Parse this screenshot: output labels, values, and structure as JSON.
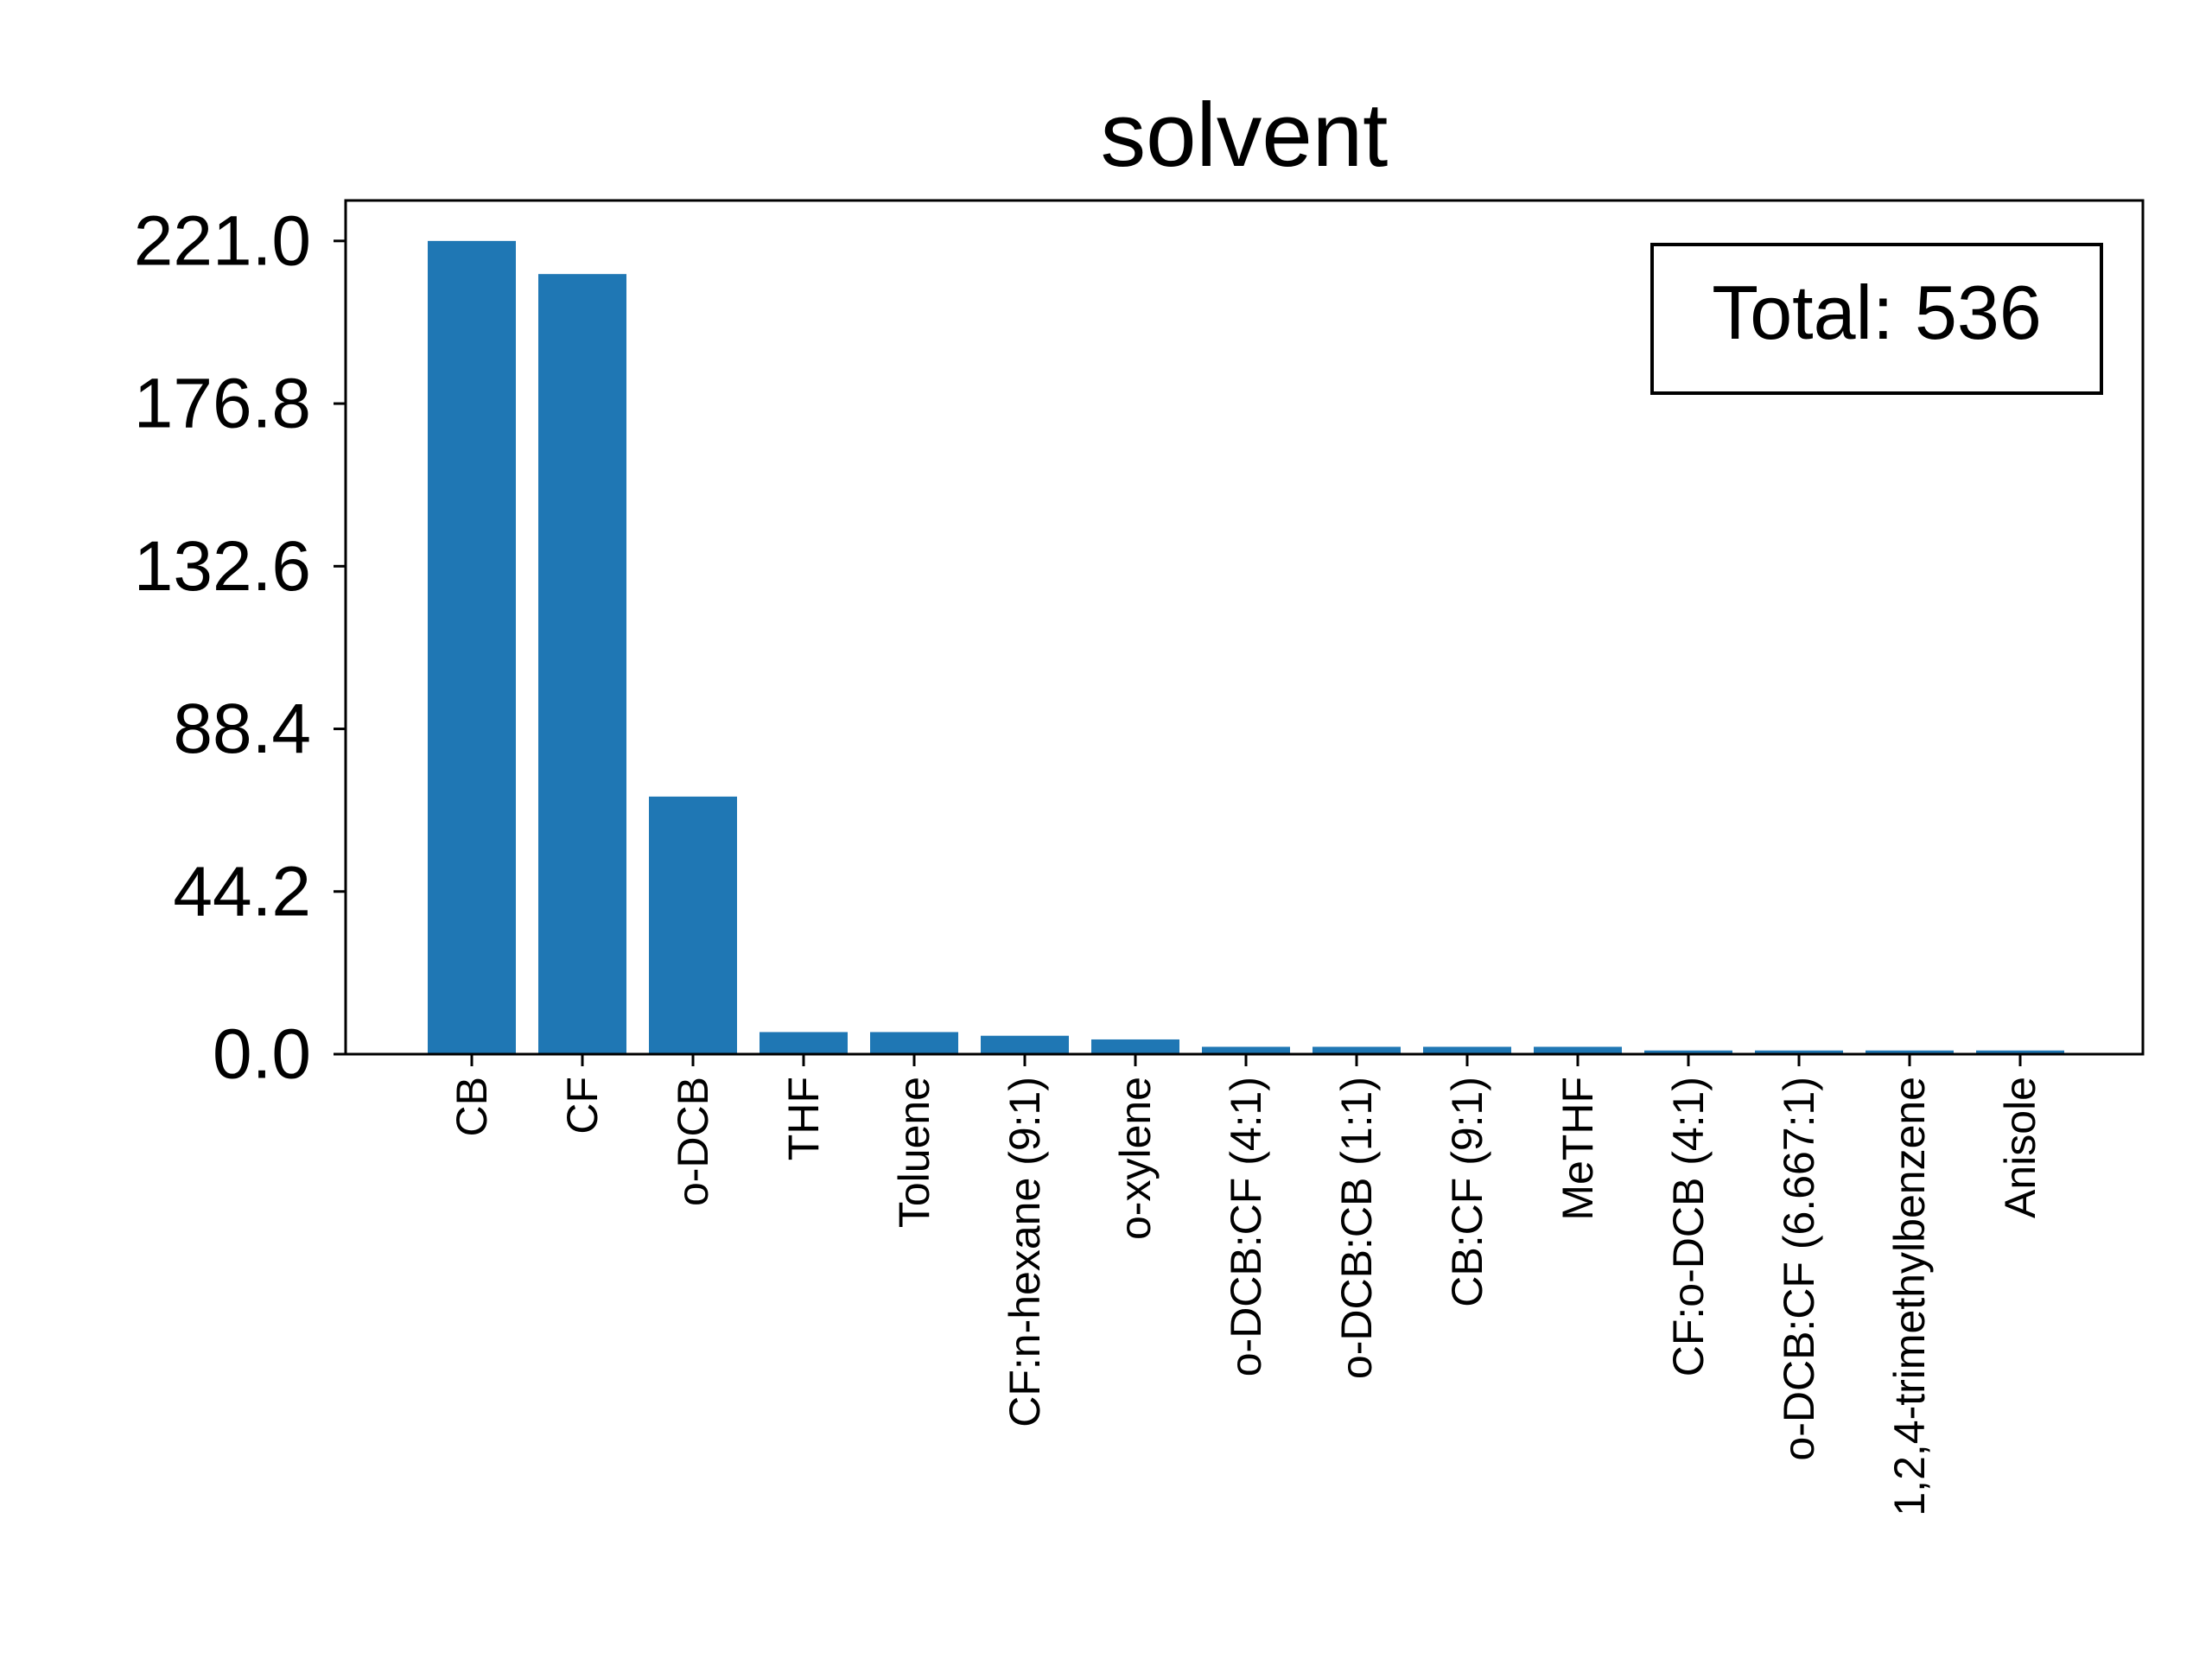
{
  "chart_data": {
    "type": "bar",
    "title": "solvent",
    "xlabel": "",
    "ylabel": "",
    "categories": [
      "CB",
      "CF",
      "o-DCB",
      "THF",
      "Toluene",
      "CF:n-hexane (9:1)",
      "o-xylene",
      "o-DCB:CF (4:1)",
      "o-DCB:CB (1:1)",
      "CB:CF (9:1)",
      "MeTHF",
      "CF:o-DCB (4:1)",
      "o-DCB:CF (6.667:1)",
      "1,2,4-trimethylbenzene",
      "Anisole"
    ],
    "values": [
      221,
      212,
      70,
      6,
      6,
      5,
      4,
      2,
      2,
      2,
      2,
      1,
      1,
      1,
      1
    ],
    "yticks": [
      "0.0",
      "44.2",
      "88.4",
      "132.6",
      "176.8",
      "221.0"
    ],
    "ylim": [
      0,
      232
    ],
    "bar_color": "#1f77b4",
    "grid": false,
    "annotation": "Total: 536",
    "annotation_position": "top-right"
  }
}
